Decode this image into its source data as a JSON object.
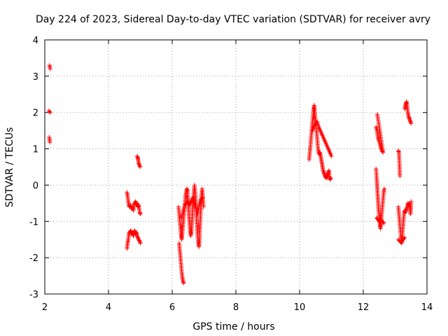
{
  "chart_data": {
    "type": "scatter",
    "title": "Day 224 of 2023, Sidereal Day-to-day VTEC variation (SDTVAR) for receiver avry",
    "xlabel": "GPS time / hours",
    "ylabel": "SDTVAR / TECUs",
    "xlim": [
      2,
      14
    ],
    "ylim": [
      -3,
      4
    ],
    "x_ticks": [
      2,
      4,
      6,
      8,
      10,
      12,
      14
    ],
    "y_ticks": [
      -3,
      -2,
      -1,
      0,
      1,
      2,
      3,
      4
    ],
    "x_tick_labels": [
      "2",
      "4",
      "6",
      "8",
      "10",
      "12",
      "14"
    ],
    "y_tick_labels": [
      "-3",
      "-2",
      "-1",
      "0",
      "1",
      "2",
      "3",
      "4"
    ],
    "grid": true,
    "marker": "+",
    "color": "#ff0000",
    "series": [
      {
        "name": "SDTVAR",
        "segments": [
          [
            [
              2.15,
              3.3
            ],
            [
              2.16,
              3.24
            ],
            [
              2.17,
              3.2
            ]
          ],
          [
            [
              2.13,
              2.05
            ],
            [
              2.15,
              2.02
            ],
            [
              2.17,
              2.0
            ]
          ],
          [
            [
              2.14,
              1.32
            ],
            [
              2.15,
              1.25
            ],
            [
              2.16,
              1.18
            ]
          ],
          [
            [
              4.58,
              -0.2
            ],
            [
              4.6,
              -0.3
            ],
            [
              4.62,
              -0.45
            ],
            [
              4.64,
              -0.55
            ],
            [
              4.66,
              -0.6
            ],
            [
              4.7,
              -0.55
            ],
            [
              4.72,
              -0.65
            ],
            [
              4.75,
              -0.6
            ],
            [
              4.78,
              -0.7
            ],
            [
              4.8,
              -0.55
            ],
            [
              4.82,
              -0.5
            ],
            [
              4.85,
              -0.45
            ],
            [
              4.88,
              -0.55
            ],
            [
              4.9,
              -0.5
            ],
            [
              4.92,
              -0.6
            ],
            [
              4.95,
              -0.55
            ],
            [
              4.98,
              -0.75
            ],
            [
              5.0,
              -0.8
            ]
          ],
          [
            [
              4.58,
              -1.75
            ],
            [
              4.6,
              -1.6
            ],
            [
              4.62,
              -1.5
            ],
            [
              4.64,
              -1.35
            ],
            [
              4.66,
              -1.3
            ],
            [
              4.7,
              -1.25
            ],
            [
              4.72,
              -1.35
            ],
            [
              4.75,
              -1.3
            ],
            [
              4.78,
              -1.4
            ],
            [
              4.8,
              -1.3
            ],
            [
              4.82,
              -1.25
            ],
            [
              4.85,
              -1.35
            ],
            [
              4.88,
              -1.3
            ],
            [
              4.9,
              -1.4
            ],
            [
              4.92,
              -1.45
            ],
            [
              4.95,
              -1.5
            ],
            [
              4.98,
              -1.55
            ],
            [
              5.0,
              -1.6
            ]
          ],
          [
            [
              4.9,
              0.8
            ],
            [
              4.92,
              0.75
            ],
            [
              4.93,
              0.7
            ],
            [
              4.95,
              0.6
            ],
            [
              4.97,
              0.55
            ],
            [
              4.99,
              0.5
            ]
          ],
          [
            [
              6.2,
              -0.6
            ],
            [
              6.22,
              -0.8
            ],
            [
              6.24,
              -1.0
            ],
            [
              6.26,
              -1.2
            ],
            [
              6.28,
              -1.4
            ],
            [
              6.3,
              -1.5
            ],
            [
              6.32,
              -1.3
            ],
            [
              6.34,
              -1.1
            ],
            [
              6.36,
              -0.9
            ],
            [
              6.38,
              -0.7
            ],
            [
              6.4,
              -0.5
            ],
            [
              6.42,
              -0.3
            ],
            [
              6.44,
              -0.2
            ],
            [
              6.46,
              -0.1
            ],
            [
              6.48,
              -0.15
            ],
            [
              6.5,
              -0.4
            ],
            [
              6.52,
              -0.7
            ],
            [
              6.54,
              -1.0
            ],
            [
              6.56,
              -1.2
            ],
            [
              6.58,
              -1.4
            ],
            [
              6.6,
              -1.3
            ],
            [
              6.62,
              -1.0
            ],
            [
              6.64,
              -0.7
            ],
            [
              6.66,
              -0.4
            ],
            [
              6.68,
              -0.2
            ],
            [
              6.7,
              0.0
            ],
            [
              6.72,
              -0.2
            ],
            [
              6.74,
              -0.5
            ],
            [
              6.76,
              -0.8
            ],
            [
              6.78,
              -1.1
            ],
            [
              6.8,
              -1.4
            ],
            [
              6.82,
              -1.6
            ],
            [
              6.84,
              -1.7
            ],
            [
              6.86,
              -1.4
            ],
            [
              6.88,
              -1.0
            ],
            [
              6.9,
              -0.6
            ],
            [
              6.92,
              -0.3
            ],
            [
              6.94,
              -0.1
            ],
            [
              6.96,
              -0.3
            ],
            [
              6.98,
              -0.6
            ]
          ],
          [
            [
              6.22,
              -1.6
            ],
            [
              6.24,
              -1.8
            ],
            [
              6.26,
              -2.0
            ],
            [
              6.28,
              -2.2
            ],
            [
              6.3,
              -2.4
            ],
            [
              6.32,
              -2.55
            ],
            [
              6.34,
              -2.65
            ],
            [
              6.36,
              -2.7
            ]
          ],
          [
            [
              6.3,
              -0.9
            ],
            [
              6.35,
              -0.7
            ],
            [
              6.4,
              -0.55
            ],
            [
              6.45,
              -0.5
            ],
            [
              6.5,
              -0.45
            ],
            [
              6.55,
              -0.55
            ],
            [
              6.6,
              -0.45
            ],
            [
              6.65,
              -0.35
            ],
            [
              6.7,
              -0.5
            ],
            [
              6.75,
              -0.65
            ],
            [
              6.8,
              -0.8
            ],
            [
              6.85,
              -0.55
            ],
            [
              6.9,
              -0.4
            ],
            [
              6.95,
              -0.35
            ]
          ],
          [
            [
              10.3,
              0.7
            ],
            [
              10.32,
              0.9
            ],
            [
              10.34,
              1.1
            ],
            [
              10.36,
              1.3
            ],
            [
              10.38,
              1.5
            ],
            [
              10.4,
              1.7
            ],
            [
              10.42,
              1.9
            ],
            [
              10.44,
              2.1
            ],
            [
              10.46,
              2.2
            ],
            [
              10.48,
              2.0
            ],
            [
              10.5,
              1.8
            ],
            [
              10.52,
              1.6
            ],
            [
              10.54,
              1.4
            ],
            [
              10.56,
              1.2
            ],
            [
              10.58,
              1.0
            ],
            [
              10.6,
              0.9
            ],
            [
              10.62,
              0.85
            ],
            [
              10.64,
              0.9
            ],
            [
              10.66,
              0.8
            ],
            [
              10.68,
              0.7
            ],
            [
              10.7,
              0.6
            ],
            [
              10.72,
              0.5
            ],
            [
              10.74,
              0.4
            ],
            [
              10.76,
              0.35
            ],
            [
              10.78,
              0.3
            ],
            [
              10.8,
              0.25
            ],
            [
              10.82,
              0.2
            ],
            [
              10.84,
              0.25
            ],
            [
              10.86,
              0.2
            ],
            [
              10.88,
              0.3
            ],
            [
              10.9,
              0.35
            ],
            [
              10.92,
              0.4
            ],
            [
              10.94,
              0.2
            ],
            [
              10.96,
              0.15
            ],
            [
              10.98,
              0.2
            ]
          ],
          [
            [
              10.4,
              1.5
            ],
            [
              10.45,
              1.6
            ],
            [
              10.5,
              1.7
            ],
            [
              10.55,
              1.75
            ],
            [
              10.6,
              1.6
            ],
            [
              10.65,
              1.5
            ],
            [
              10.7,
              1.4
            ],
            [
              10.75,
              1.3
            ],
            [
              10.8,
              1.2
            ],
            [
              10.85,
              1.1
            ],
            [
              10.9,
              1.0
            ],
            [
              10.95,
              0.9
            ],
            [
              11.0,
              0.8
            ]
          ],
          [
            [
              12.4,
              0.45
            ],
            [
              12.42,
              0.2
            ],
            [
              12.44,
              -0.1
            ],
            [
              12.46,
              -0.4
            ],
            [
              12.48,
              -0.7
            ],
            [
              12.5,
              -0.9
            ],
            [
              12.52,
              -1.1
            ],
            [
              12.54,
              -1.2
            ],
            [
              12.56,
              -1.0
            ],
            [
              12.58,
              -0.8
            ],
            [
              12.6,
              -0.6
            ],
            [
              12.62,
              -0.4
            ],
            [
              12.64,
              -0.2
            ],
            [
              12.66,
              -0.1
            ]
          ],
          [
            [
              12.4,
              1.6
            ],
            [
              12.43,
              1.5
            ],
            [
              12.46,
              1.3
            ],
            [
              12.5,
              1.2
            ],
            [
              12.54,
              1.05
            ],
            [
              12.58,
              0.95
            ],
            [
              12.62,
              0.9
            ],
            [
              12.44,
              1.95
            ]
          ],
          [
            [
              12.42,
              -0.9
            ],
            [
              12.46,
              -0.95
            ],
            [
              12.5,
              -1.0
            ],
            [
              12.55,
              -0.95
            ],
            [
              12.6,
              -1.0
            ],
            [
              12.65,
              -1.05
            ]
          ],
          [
            [
              13.1,
              0.95
            ],
            [
              13.12,
              0.9
            ],
            [
              13.15,
              0.25
            ]
          ],
          [
            [
              13.1,
              -0.6
            ],
            [
              13.12,
              -0.8
            ],
            [
              13.14,
              -1.0
            ],
            [
              13.16,
              -1.2
            ],
            [
              13.18,
              -1.4
            ],
            [
              13.2,
              -1.5
            ],
            [
              13.22,
              -1.4
            ],
            [
              13.24,
              -1.2
            ],
            [
              13.26,
              -1.0
            ],
            [
              13.28,
              -0.8
            ],
            [
              13.3,
              -0.7
            ],
            [
              13.32,
              -0.75
            ],
            [
              13.34,
              -0.7
            ],
            [
              13.36,
              -0.65
            ],
            [
              13.38,
              -0.6
            ],
            [
              13.4,
              -0.5
            ],
            [
              13.42,
              -0.55
            ],
            [
              13.44,
              -0.5
            ],
            [
              13.46,
              -0.6
            ],
            [
              13.48,
              -0.8
            ],
            [
              13.5,
              -0.45
            ]
          ],
          [
            [
              13.1,
              -1.5
            ],
            [
              13.15,
              -1.55
            ],
            [
              13.2,
              -1.6
            ],
            [
              13.25,
              -1.5
            ],
            [
              13.3,
              -1.45
            ]
          ],
          [
            [
              13.3,
              2.1
            ],
            [
              13.32,
              2.2
            ],
            [
              13.34,
              2.25
            ],
            [
              13.36,
              2.3
            ],
            [
              13.38,
              2.15
            ],
            [
              13.4,
              2.0
            ],
            [
              13.42,
              1.9
            ],
            [
              13.44,
              1.85
            ],
            [
              13.46,
              1.8
            ],
            [
              13.48,
              1.75
            ],
            [
              13.5,
              1.7
            ]
          ]
        ]
      }
    ]
  }
}
